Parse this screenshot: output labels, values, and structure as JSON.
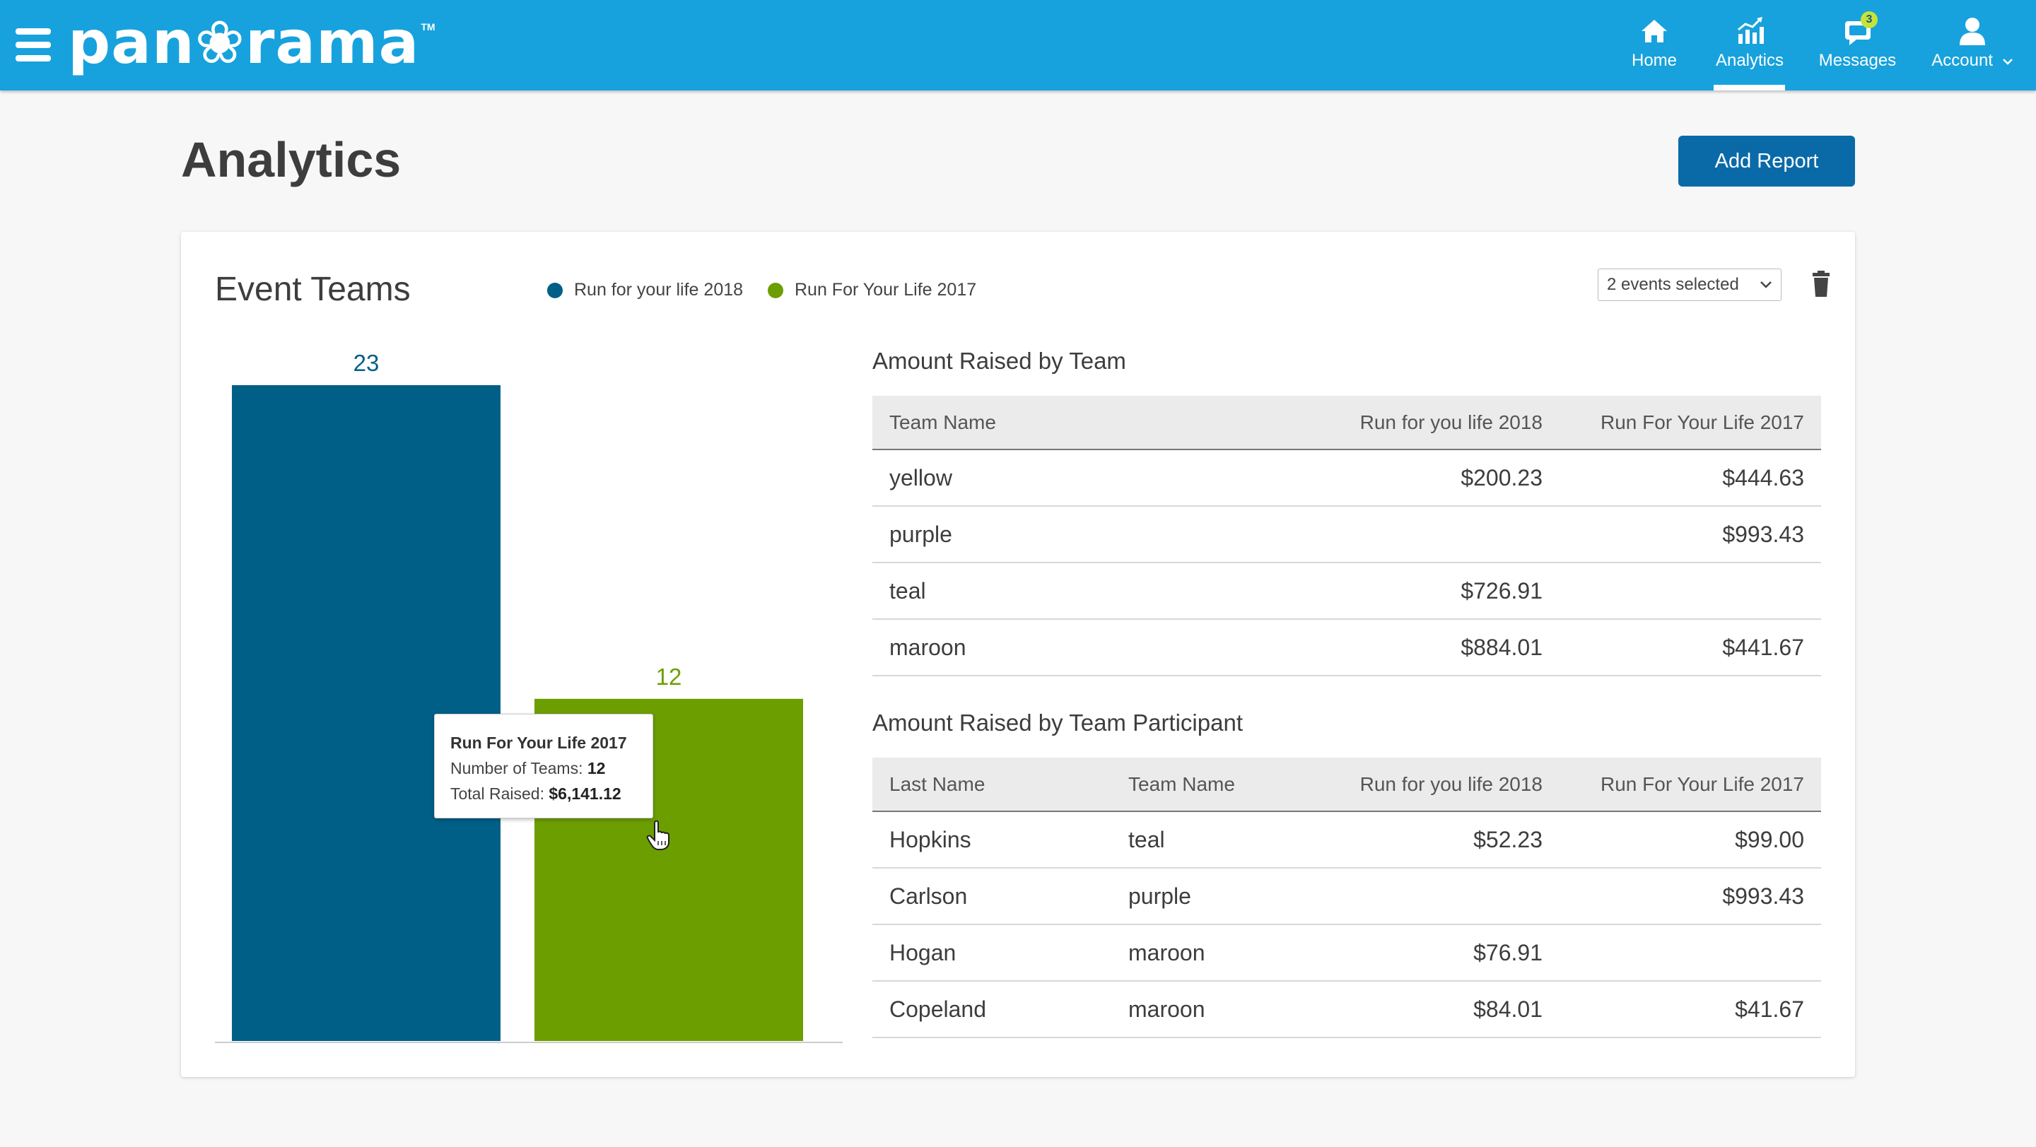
{
  "app": {
    "logo_text": "pan❀rama",
    "logo_tm": "TM"
  },
  "nav": {
    "home": "Home",
    "analytics": "Analytics",
    "messages": "Messages",
    "messages_badge": "3",
    "account": "Account",
    "active": "Analytics"
  },
  "page": {
    "title": "Analytics",
    "add_report": "Add Report"
  },
  "card": {
    "title": "Event Teams",
    "legend": [
      {
        "label": "Run for your life 2018",
        "color": "#005f87"
      },
      {
        "label": "Run For Your Life 2017",
        "color": "#6d9e00"
      }
    ],
    "events_select": "2 events selected"
  },
  "chart_data": {
    "type": "bar",
    "categories": [
      "Run for your life 2018",
      "Run For Your Life 2017"
    ],
    "values": [
      23,
      12
    ],
    "colors": [
      "#005f87",
      "#6d9e00"
    ],
    "data_labels": [
      "23",
      "12"
    ],
    "ylim": [
      0,
      23
    ],
    "grid": false
  },
  "tooltip": {
    "title": "Run For Your Life 2017",
    "teams_label": "Number of Teams:",
    "teams_value": "12",
    "raised_label": "Total Raised:",
    "raised_value": "$6,141.12"
  },
  "team_table": {
    "title": "Amount Raised by Team",
    "headers": [
      "Team Name",
      "Run for you life 2018",
      "Run For Your Life 2017"
    ],
    "rows": [
      [
        "yellow",
        "$200.23",
        "$444.63"
      ],
      [
        "purple",
        "",
        "$993.43"
      ],
      [
        "teal",
        "$726.91",
        ""
      ],
      [
        "maroon",
        "$884.01",
        "$441.67"
      ]
    ]
  },
  "participant_table": {
    "title": "Amount Raised by Team Participant",
    "headers": [
      "Last Name",
      "Team Name",
      "Run for you life 2018",
      "Run For Your Life 2017"
    ],
    "rows": [
      [
        "Hopkins",
        "teal",
        "$52.23",
        "$99.00"
      ],
      [
        "Carlson",
        "purple",
        "",
        "$993.43"
      ],
      [
        "Hogan",
        "maroon",
        "$76.91",
        ""
      ],
      [
        "Copeland",
        "maroon",
        "$84.01",
        "$41.67"
      ]
    ]
  }
}
